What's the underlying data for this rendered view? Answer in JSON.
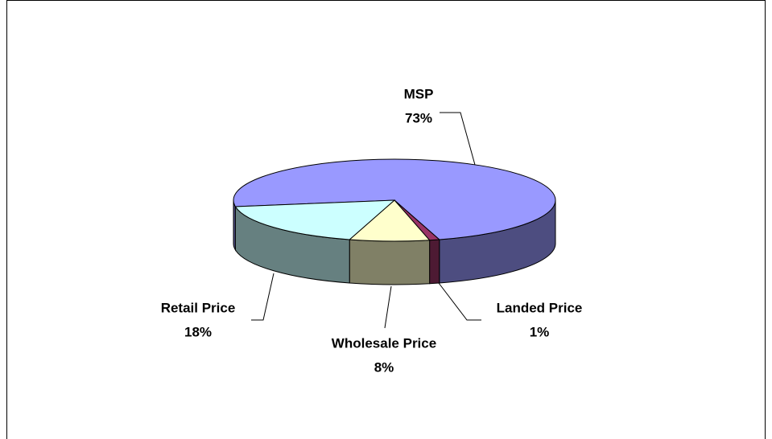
{
  "chart_data": {
    "type": "pie3d",
    "categories": [
      "MSP",
      "Landed Price",
      "Wholesale Price",
      "Retail Price"
    ],
    "values": [
      73,
      1,
      8,
      18
    ],
    "value_labels": [
      "73%",
      "1%",
      "8%",
      "18%"
    ],
    "colors": [
      "#9999ff",
      "#993366",
      "#ffffcc",
      "#ccffff"
    ]
  }
}
